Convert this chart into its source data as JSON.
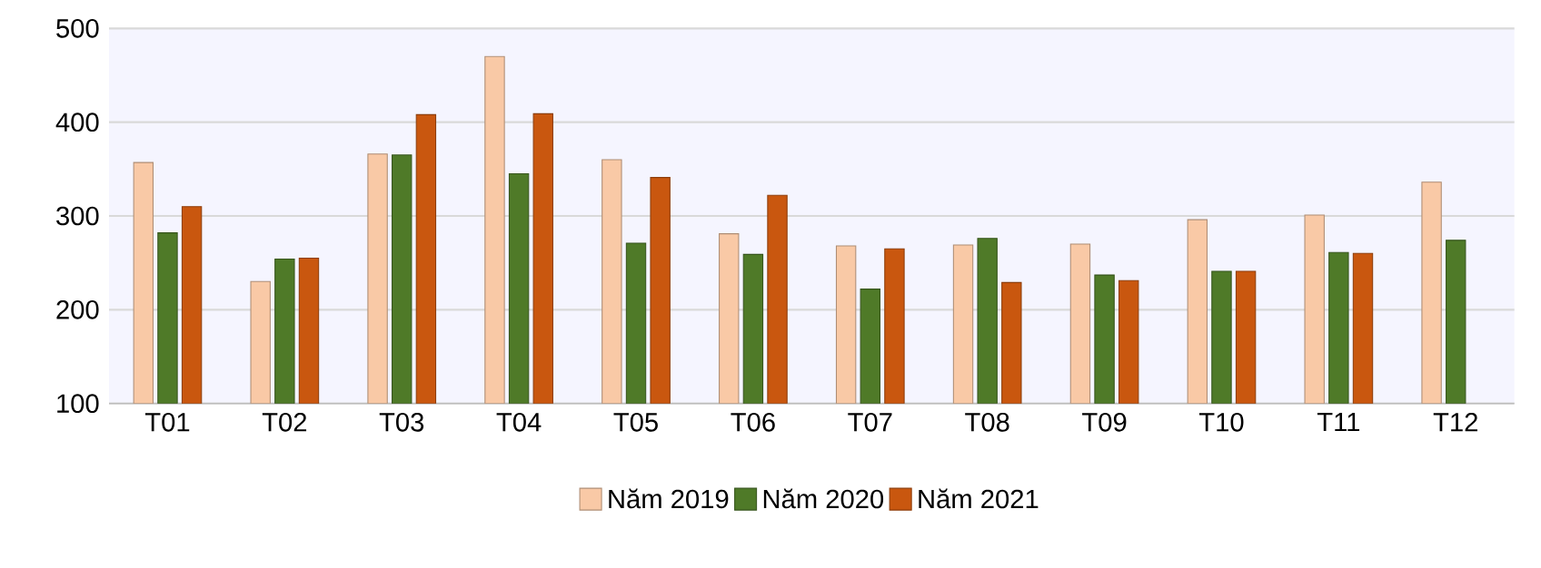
{
  "chart_data": {
    "type": "bar",
    "categories": [
      "T01",
      "T02",
      "T03",
      "T04",
      "T05",
      "T06",
      "T07",
      "T08",
      "T09",
      "T10",
      "T11",
      "T12"
    ],
    "series": [
      {
        "name": "Năm 2019",
        "color": "#f9c9a6",
        "values": [
          357,
          230,
          366,
          470,
          360,
          281,
          268,
          269,
          270,
          296,
          301,
          336
        ]
      },
      {
        "name": "Năm 2020",
        "color": "#4f7a28",
        "values": [
          282,
          254,
          365,
          345,
          271,
          259,
          222,
          276,
          237,
          241,
          261,
          274
        ]
      },
      {
        "name": "Năm 2021",
        "color": "#c9570f",
        "values": [
          310,
          255,
          408,
          409,
          341,
          322,
          265,
          229,
          231,
          241,
          260,
          null
        ]
      }
    ],
    "ylim": [
      100,
      500
    ],
    "yticks": [
      100,
      200,
      300,
      400,
      500
    ],
    "grid": "y",
    "legend": "bottom"
  }
}
